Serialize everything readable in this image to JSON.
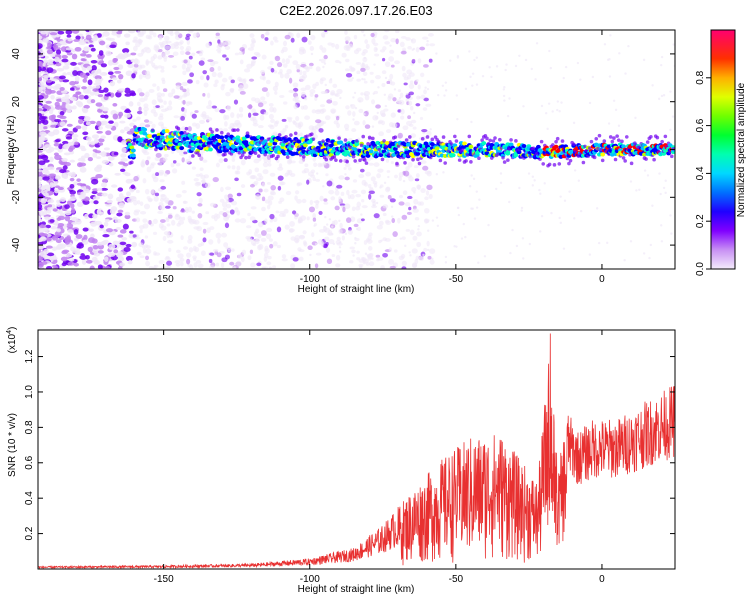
{
  "figure": {
    "title": "C2E2.2026.097.17.26.E03"
  },
  "chart_data": [
    {
      "type": "heatmap",
      "xlabel": "Height of straight line (km)",
      "ylabel": "Frequency (Hz)",
      "xlim": [
        -193,
        25
      ],
      "ylim": [
        -50,
        50
      ],
      "x_ticks": [
        -150,
        -100,
        -50,
        0
      ],
      "y_ticks": [
        -40,
        -20,
        0,
        20,
        40
      ],
      "colorbar": {
        "label": "Normalized spectral amplitude",
        "range": [
          0,
          1
        ],
        "ticks": [
          "0.0",
          "0.2",
          "0.4",
          "0.6",
          "0.8"
        ],
        "tick_values": [
          0.0,
          0.2,
          0.4,
          0.6,
          0.8
        ],
        "colors": [
          "#f0e8f8",
          "#c080f0",
          "#7000f0",
          "#0000ff",
          "#00c0ff",
          "#00ffc0",
          "#00ff00",
          "#c0ff00",
          "#ffff00",
          "#ff8000",
          "#ff0000",
          "#ff0080"
        ]
      },
      "ridge": {
        "description_points_x": [
          -160,
          -140,
          -120,
          -100,
          -80,
          -60,
          -40,
          -20,
          0,
          20
        ],
        "description_points_y": [
          5,
          3,
          2,
          1,
          0,
          0,
          0,
          -1,
          0,
          0
        ]
      }
    },
    {
      "type": "line",
      "xlabel": "Height of straight line (km)",
      "ylabel": "SNR (10 * v/v)",
      "multiplier": "(x10",
      "multiplier_exp": "4",
      "multiplier_close": ")",
      "xlim": [
        -193,
        25
      ],
      "ylim": [
        0,
        1.35
      ],
      "x_ticks": [
        -150,
        -100,
        -50,
        0
      ],
      "y_ticks": [
        0.2,
        0.4,
        0.6,
        0.8,
        1.0,
        1.2
      ],
      "y_tick_labels": [
        "0.2",
        "0.4",
        "0.6",
        "0.8",
        "1.0",
        "1.2"
      ],
      "series": [
        {
          "color": "#e83030"
        }
      ],
      "envelope_x": [
        -193,
        -150,
        -120,
        -100,
        -85,
        -75,
        -65,
        -55,
        -45,
        -35,
        -28,
        -22,
        -18,
        -15,
        -12,
        -8,
        -3,
        5,
        15,
        25
      ],
      "envelope_y": [
        0.015,
        0.02,
        0.03,
        0.06,
        0.12,
        0.25,
        0.45,
        0.62,
        0.75,
        0.78,
        0.62,
        0.5,
        1.25,
        0.55,
        0.9,
        0.78,
        0.85,
        0.85,
        0.95,
        1.05
      ]
    }
  ]
}
